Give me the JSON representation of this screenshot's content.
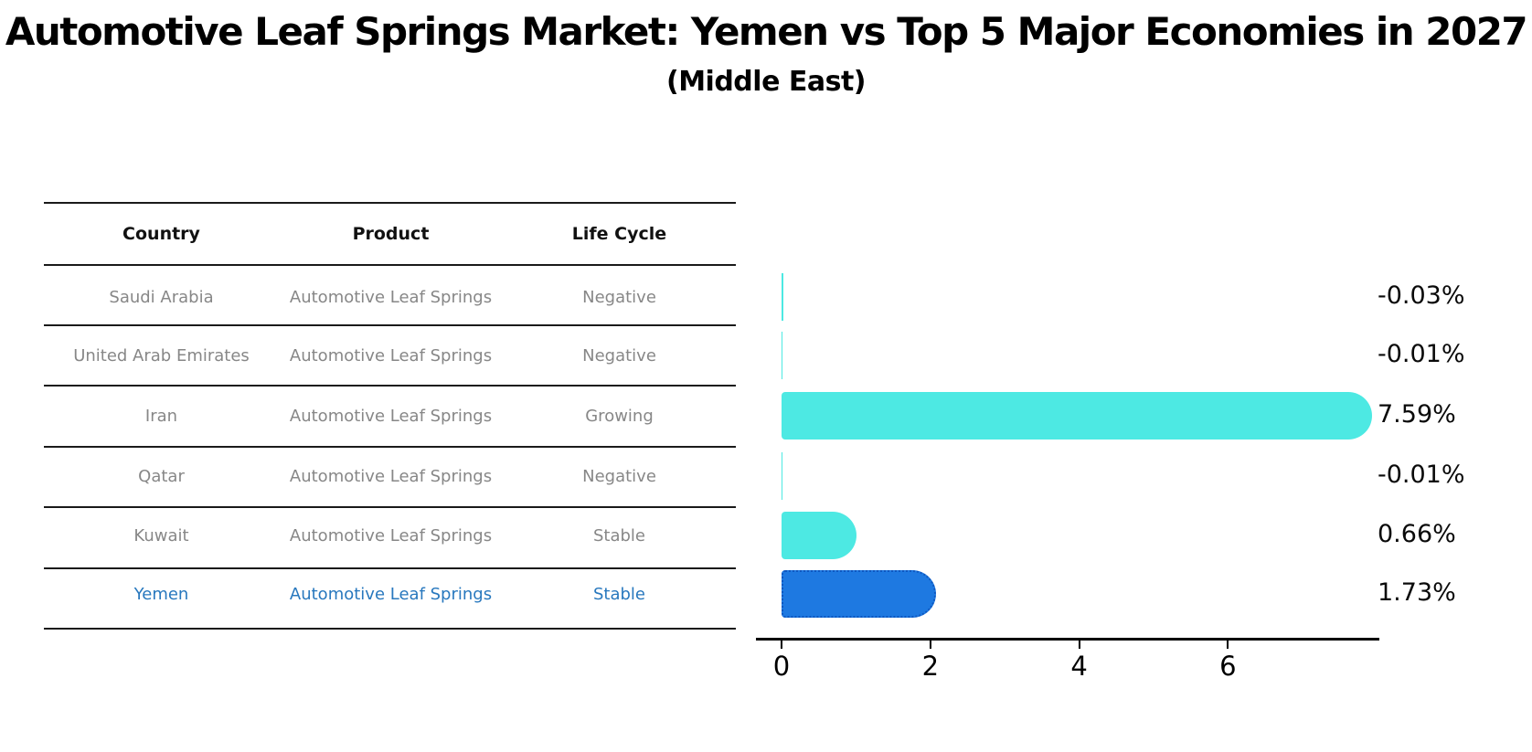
{
  "title": "Automotive Leaf Springs Market: Yemen vs Top 5 Major Economies in 2027",
  "subtitle": "(Middle East)",
  "table": {
    "columns": [
      "Country",
      "Product",
      "Life Cycle"
    ],
    "rows": [
      {
        "country": "Saudi Arabia",
        "product": "Automotive Leaf Springs",
        "life_cycle": "Negative",
        "highlight": false
      },
      {
        "country": "United Arab Emirates",
        "product": "Automotive Leaf Springs",
        "life_cycle": "Negative",
        "highlight": false
      },
      {
        "country": "Iran",
        "product": "Automotive Leaf Springs",
        "life_cycle": "Growing",
        "highlight": false
      },
      {
        "country": "Qatar",
        "product": "Automotive Leaf Springs",
        "life_cycle": "Negative",
        "highlight": false
      },
      {
        "country": "Kuwait",
        "product": "Automotive Leaf Springs",
        "life_cycle": "Stable",
        "highlight": false
      },
      {
        "country": "Yemen",
        "product": "Automotive Leaf Springs",
        "life_cycle": "Stable",
        "highlight": true
      }
    ]
  },
  "chart_data": {
    "type": "bar",
    "orientation": "horizontal",
    "title": "Automotive Leaf Springs Market: Yemen vs Top 5 Major Economies in 2027",
    "subtitle": "(Middle East)",
    "categories": [
      "Saudi Arabia",
      "United Arab Emirates",
      "Iran",
      "Qatar",
      "Kuwait",
      "Yemen"
    ],
    "values": [
      -0.03,
      -0.01,
      7.59,
      -0.01,
      0.66,
      1.73
    ],
    "value_labels": [
      "-0.03%",
      "-0.01%",
      "7.59%",
      "-0.01%",
      "0.66%",
      "1.73%"
    ],
    "xlim": [
      0,
      8
    ],
    "xticks": [
      0,
      2,
      4,
      6
    ],
    "grid": false,
    "legend": "none",
    "bar_color": "#4DE9E3",
    "highlight_color": "#1E79E1",
    "highlight_border_color": "#0e57c0",
    "highlight_index": 5,
    "axis_color": "#000000",
    "table_text_color": "#878787",
    "highlight_text_color": "#2878be"
  }
}
